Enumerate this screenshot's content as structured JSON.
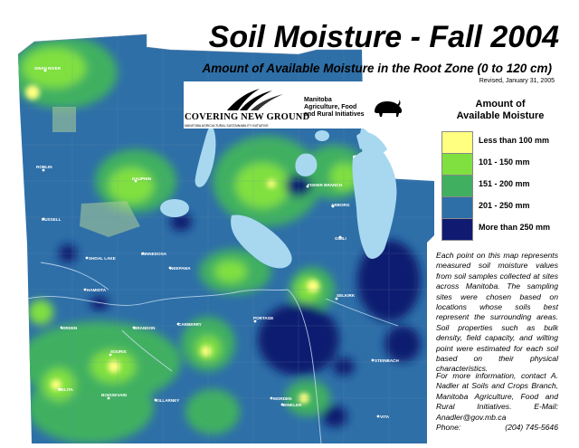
{
  "title": "Soil Moisture - Fall 2004",
  "subtitle": "Amount of Available Moisture in the Root Zone (0 to 120 cm)",
  "revised": "Revised, January 31, 2005",
  "logos": {
    "covering_new_ground": "COVERING NEW GROUND",
    "covering_new_ground_sub": "MANITOBA AGRICULTURAL SUSTAINABILITY INITIATIVE",
    "manitoba_line1": "Manitoba",
    "manitoba_line2": "Agriculture, Food",
    "manitoba_line3": "and Rural Initiatives"
  },
  "legend": {
    "title_line1": "Amount of",
    "title_line2": "Available Moisture",
    "items": [
      {
        "label": "Less than 100 mm",
        "color": "#ffff80"
      },
      {
        "label": "101 - 150 mm",
        "color": "#80e040"
      },
      {
        "label": "151 - 200 mm",
        "color": "#40b060"
      },
      {
        "label": "201 - 250 mm",
        "color": "#2e6fa8"
      },
      {
        "label": "More than 250 mm",
        "color": "#101a70"
      }
    ]
  },
  "description": "Each point on this map represents measured soil moisture values from soil samples collected at sites across Manitoba. The sampling sites were chosen based on locations whose soils best represent the surrounding areas. Soil properties such as bulk density, field capacity, and wilting point were estimated for each soil based on their physical characteristics.",
  "contact": {
    "line1": "For more information, contact A. Nadler at Soils and Crops Branch, Manitoba Agriculture, Food and Rural Initiatives.",
    "email": "E-Mail: Anadler@gov.mb.ca",
    "phone_label": "Phone:",
    "phone": "(204) 745-5646"
  },
  "towns": {
    "swan_river": "SWAN RIVER",
    "roblin": "ROBLIN",
    "dauphin": "DAUPHIN",
    "russell": "RUSSELL",
    "shoal_lake": "SHOAL LAKE",
    "minnedosa": "MINNEDOSA",
    "neepawa": "NEEPAWA",
    "hamiota": "HAMIOTA",
    "virden": "VIRDEN",
    "brandon": "BRANDON",
    "carberry": "CARBERRY",
    "souris": "SOURIS",
    "melita": "MELITA",
    "boissevain": "BOISSEVAIN",
    "killarney": "KILLARNEY",
    "morden": "MORDEN",
    "winkler": "WINKLER",
    "steinbach": "STEINBACH",
    "gimli": "GIMLI",
    "arborg": "ARBORG",
    "fisher_branch": "FISHER BRANCH",
    "selkirk": "SELKIRK",
    "portage": "PORTAGE",
    "vita": "VITA"
  }
}
